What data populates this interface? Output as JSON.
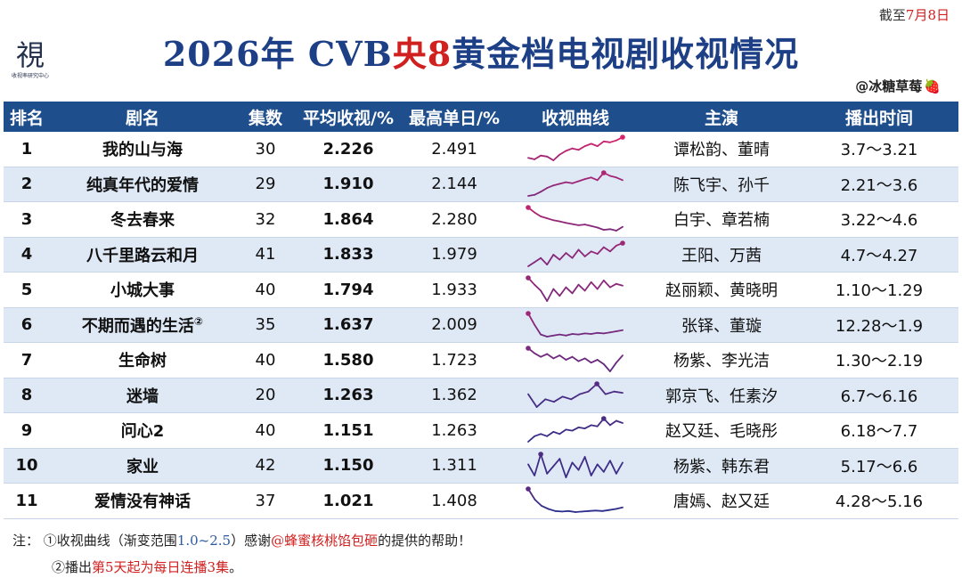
{
  "deadline": {
    "prefix": "截至",
    "date": "7月8日"
  },
  "logo": {
    "glyph": "視",
    "sub": "收视率研究中心"
  },
  "title": {
    "part1": "2026年 CVB",
    "highlight": "央8",
    "part2": "黄金档电视剧收视情况"
  },
  "credit": {
    "handle": "@冰糖草莓",
    "berry": "🍓"
  },
  "colors": {
    "header_bg": "#1f4e8c",
    "title": "#1d3f86",
    "accent_red": "#d0201f",
    "row_alt": "#dfe9f6",
    "curve_low": "#2b2e8a",
    "curve_high": "#d8236b"
  },
  "columns": [
    "排名",
    "剧名",
    "集数",
    "平均收视/%",
    "最高单日/%",
    "收视曲线",
    "主演",
    "播出时间"
  ],
  "chart_data": {
    "type": "table",
    "gradient_range": [
      1.0,
      2.5
    ],
    "rows": [
      {
        "rank": "1",
        "name": "我的山与海",
        "note": "",
        "episodes": "30",
        "avg": "2.226",
        "peak": "2.491",
        "cast": "谭松韵、董晴",
        "period": "3.7～3.21",
        "curve": [
          2.05,
          2.02,
          2.1,
          2.08,
          2.0,
          2.12,
          2.2,
          2.25,
          2.22,
          2.3,
          2.35,
          2.3,
          2.4,
          2.38,
          2.42,
          2.49
        ]
      },
      {
        "rank": "2",
        "name": "纯真年代的爱情",
        "note": "",
        "episodes": "29",
        "avg": "1.910",
        "peak": "2.144",
        "cast": "陈飞宇、孙千",
        "period": "2.21～3.6",
        "curve": [
          1.7,
          1.72,
          1.78,
          1.85,
          1.9,
          1.93,
          1.96,
          1.94,
          1.98,
          2.02,
          2.05,
          2.0,
          2.14,
          2.08,
          2.05,
          2.0
        ]
      },
      {
        "rank": "3",
        "name": "冬去春来",
        "note": "",
        "episodes": "32",
        "avg": "1.864",
        "peak": "2.280",
        "cast": "白宇、章若楠",
        "period": "3.22～4.6",
        "curve": [
          2.28,
          2.15,
          2.05,
          2.0,
          1.95,
          1.92,
          1.88,
          1.85,
          1.82,
          1.84,
          1.8,
          1.76,
          1.7,
          1.72,
          1.68,
          1.78
        ]
      },
      {
        "rank": "4",
        "name": "八千里路云和月",
        "note": "",
        "episodes": "41",
        "avg": "1.833",
        "peak": "1.979",
        "cast": "王阳、万茜",
        "period": "4.7～4.27",
        "curve": [
          1.7,
          1.75,
          1.8,
          1.72,
          1.84,
          1.78,
          1.86,
          1.8,
          1.9,
          1.82,
          1.88,
          1.85,
          1.93,
          1.88,
          1.95,
          1.98
        ]
      },
      {
        "rank": "5",
        "name": "小城大事",
        "note": "",
        "episodes": "40",
        "avg": "1.794",
        "peak": "1.933",
        "cast": "赵丽颖、黄晓明",
        "period": "1.10～1.29",
        "curve": [
          1.93,
          1.85,
          1.78,
          1.66,
          1.8,
          1.72,
          1.82,
          1.75,
          1.85,
          1.78,
          1.88,
          1.8,
          1.9,
          1.82,
          1.86,
          1.84
        ]
      },
      {
        "rank": "6",
        "name": "不期而遇的生活",
        "note": "②",
        "episodes": "35",
        "avg": "1.637",
        "peak": "2.009",
        "cast": "张铎、董璇",
        "period": "12.28～1.9",
        "curve": [
          2.01,
          1.8,
          1.62,
          1.58,
          1.6,
          1.62,
          1.6,
          1.63,
          1.62,
          1.64,
          1.63,
          1.65,
          1.64,
          1.66,
          1.68,
          1.7
        ]
      },
      {
        "rank": "7",
        "name": "生命树",
        "note": "",
        "episodes": "40",
        "avg": "1.580",
        "peak": "1.723",
        "cast": "杨紫、李光洁",
        "period": "1.30～2.19",
        "curve": [
          1.72,
          1.65,
          1.6,
          1.64,
          1.58,
          1.62,
          1.56,
          1.6,
          1.54,
          1.58,
          1.52,
          1.56,
          1.5,
          1.4,
          1.52,
          1.62
        ]
      },
      {
        "rank": "8",
        "name": "迷墙",
        "note": "",
        "episodes": "20",
        "avg": "1.263",
        "peak": "1.362",
        "cast": "郭京飞、任素汐",
        "period": "6.7～6.16",
        "curve": [
          1.28,
          1.18,
          1.24,
          1.22,
          1.26,
          1.24,
          1.28,
          1.3,
          1.36,
          1.28,
          1.3,
          1.29
        ]
      },
      {
        "rank": "9",
        "name": "问心2",
        "note": "",
        "episodes": "40",
        "avg": "1.151",
        "peak": "1.263",
        "cast": "赵又廷、毛晓彤",
        "period": "6.18～7.7",
        "curve": [
          1.05,
          1.1,
          1.12,
          1.1,
          1.14,
          1.12,
          1.16,
          1.15,
          1.18,
          1.17,
          1.2,
          1.19,
          1.26,
          1.2,
          1.24,
          1.22
        ]
      },
      {
        "rank": "10",
        "name": "家业",
        "note": "",
        "episodes": "42",
        "avg": "1.150",
        "peak": "1.311",
        "cast": "杨紫、韩东君",
        "period": "5.17～6.6",
        "curve": [
          1.2,
          1.08,
          1.31,
          1.1,
          1.18,
          1.26,
          1.06,
          1.22,
          1.14,
          1.28,
          1.08,
          1.2,
          1.12,
          1.24,
          1.1,
          1.22
        ]
      },
      {
        "rank": "11",
        "name": "爱情没有神话",
        "note": "",
        "episodes": "37",
        "avg": "1.021",
        "peak": "1.408",
        "cast": "唐嫣、赵又廷",
        "period": "4.28～5.16",
        "curve": [
          1.41,
          1.2,
          1.08,
          1.02,
          0.98,
          0.97,
          0.98,
          0.96,
          0.97,
          0.98,
          0.99,
          0.98,
          1.0,
          1.02,
          1.05
        ]
      }
    ]
  },
  "notes": {
    "label": "注：",
    "n1_a": "①收视曲线（渐变范围",
    "n1_range": "1.0~2.5",
    "n1_b": "）感谢",
    "n1_hl": "@蜂蜜核桃馅包砸",
    "n1_c": "的提供的帮助！",
    "n2_a": "②播出",
    "n2_hl": "第5天起为每日连播3集",
    "n2_b": "。"
  }
}
